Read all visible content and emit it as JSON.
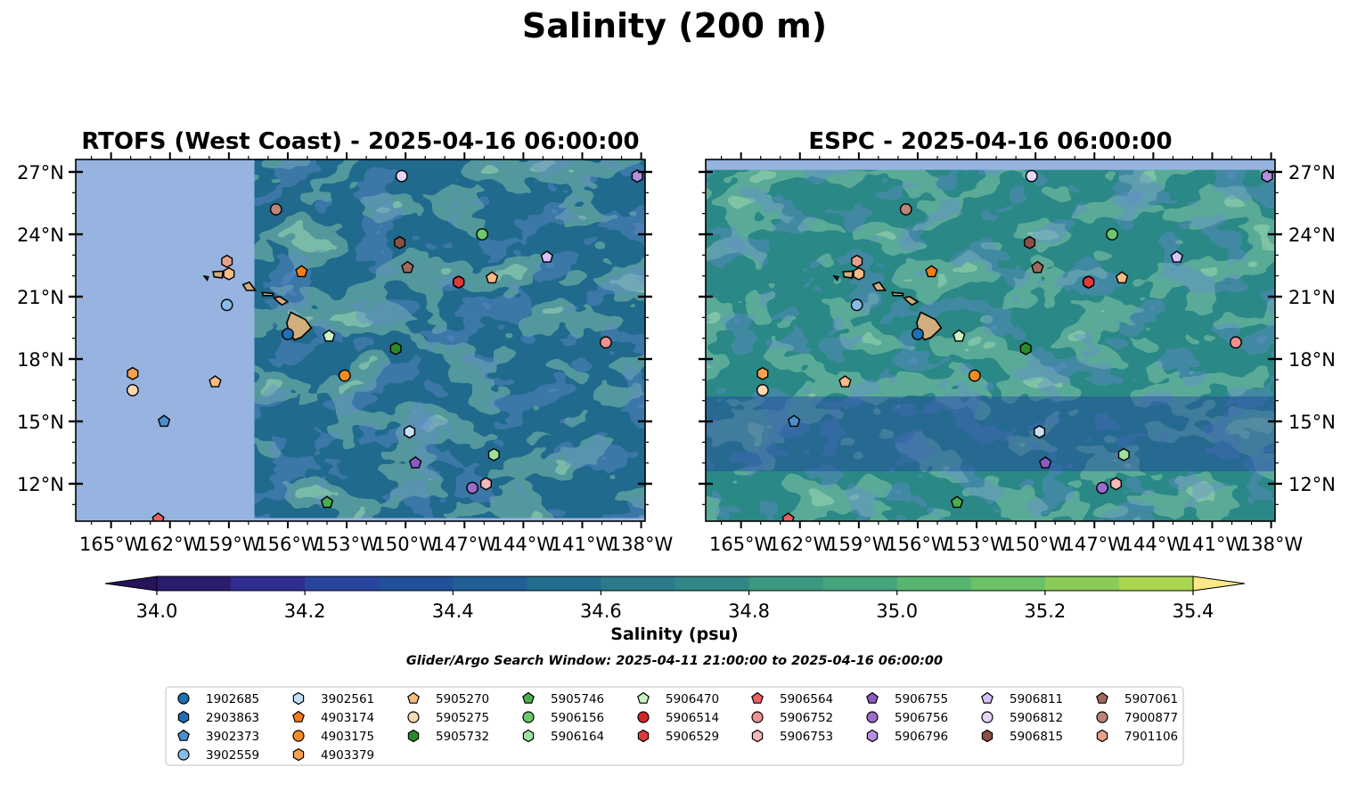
{
  "figure": {
    "suptitle": "Salinity (200 m)",
    "search_window_note": "Glider/Argo Search Window: 2025-04-11 21:00:00 to 2025-04-16 06:00:00"
  },
  "colors": {
    "land_masked": "#97b4e0",
    "island_fill": "#d2ae7c",
    "frame": "#000000"
  },
  "chart_data": [
    {
      "type": "heatmap",
      "title": "RTOFS (West Coast) - 2025-04-16 06:00:00",
      "map_extent": {
        "lon": [
          -166.8,
          -137.8
        ],
        "lat": [
          10.2,
          27.6
        ]
      },
      "x_ticks": [
        "165°W",
        "162°W",
        "159°W",
        "156°W",
        "153°W",
        "150°W",
        "147°W",
        "144°W",
        "141°W",
        "138°W"
      ],
      "y_ticks": [
        "27°N",
        "24°N",
        "21°N",
        "18°N",
        "15°N",
        "12°N"
      ],
      "y_tick_side": "left",
      "data_domain_lon_min": -157.7,
      "typical_salinity_psu": 34.6
    },
    {
      "type": "heatmap",
      "title": "ESPC - 2025-04-16 06:00:00",
      "map_extent": {
        "lon": [
          -166.8,
          -137.8
        ],
        "lat": [
          10.2,
          27.6
        ]
      },
      "x_ticks": [
        "165°W",
        "162°W",
        "159°W",
        "156°W",
        "153°W",
        "150°W",
        "147°W",
        "144°W",
        "141°W",
        "138°W"
      ],
      "y_ticks": [
        "27°N",
        "24°N",
        "21°N",
        "18°N",
        "15°N",
        "12°N"
      ],
      "y_tick_side": "right",
      "data_domain_lat_max": 27.1,
      "typical_salinity_psu": 34.8
    }
  ],
  "colorbar": {
    "label": "Salinity (psu)",
    "min": 34.0,
    "max": 35.4,
    "step": 0.1,
    "extend": "both",
    "tick_labels": [
      "34.0",
      "34.2",
      "34.4",
      "34.6",
      "34.8",
      "35.0",
      "35.2",
      "35.4"
    ],
    "colors": [
      "#2a1b6c",
      "#2f2c92",
      "#2a45a0",
      "#214f9a",
      "#1f5f94",
      "#226c8e",
      "#2b7a89",
      "#318785",
      "#3b9881",
      "#45a57c",
      "#57b572",
      "#6cc066",
      "#8acb58",
      "#abd650",
      "#d1e16c"
    ],
    "under_color": "#26135a",
    "over_color": "#fde889"
  },
  "floats": [
    {
      "id": "1902685",
      "marker": "o",
      "color": "#1f6fb5",
      "lon": -156.0,
      "lat": 19.2
    },
    {
      "id": "2903863",
      "marker": "h",
      "color": "#1f6fb5",
      "lon": -149.8,
      "lat": 14.5
    },
    {
      "id": "3902373",
      "marker": "p",
      "color": "#4c8fd0",
      "lon": -162.3,
      "lat": 15.0
    },
    {
      "id": "3902559",
      "marker": "o",
      "color": "#86bce8",
      "lon": -159.1,
      "lat": 20.6
    },
    {
      "id": "3902561",
      "marker": "h",
      "color": "#c4e0f6",
      "lon": -149.8,
      "lat": 14.5
    },
    {
      "id": "4903174",
      "marker": "p",
      "color": "#f47d1a",
      "lon": -155.3,
      "lat": 22.2
    },
    {
      "id": "4903175",
      "marker": "o",
      "color": "#f58c23",
      "lon": -153.1,
      "lat": 17.2
    },
    {
      "id": "4903379",
      "marker": "h",
      "color": "#f6a050",
      "lon": -163.9,
      "lat": 17.3
    },
    {
      "id": "5905270",
      "marker": "p",
      "color": "#f9bb84",
      "lon": -159.7,
      "lat": 16.9
    },
    {
      "id": "5905275",
      "marker": "o",
      "color": "#fcd8b1",
      "lon": -163.9,
      "lat": 16.5
    },
    {
      "id": "5905732",
      "marker": "h",
      "color": "#2a8a2a",
      "lon": -150.5,
      "lat": 18.5
    },
    {
      "id": "5905746",
      "marker": "p",
      "color": "#4cae4c",
      "lon": -154.0,
      "lat": 11.1
    },
    {
      "id": "5906156",
      "marker": "o",
      "color": "#6cc86c",
      "lon": -146.1,
      "lat": 24.0
    },
    {
      "id": "5906164",
      "marker": "h",
      "color": "#9ee09e",
      "lon": -145.5,
      "lat": 13.4
    },
    {
      "id": "5906470",
      "marker": "p",
      "color": "#c8f2c0",
      "lon": -153.9,
      "lat": 19.1
    },
    {
      "id": "5906514",
      "marker": "o",
      "color": "#d62728",
      "lon": -147.3,
      "lat": 21.7
    },
    {
      "id": "5906529",
      "marker": "h",
      "color": "#e0393b",
      "lon": -147.3,
      "lat": 21.7
    },
    {
      "id": "5906564",
      "marker": "p",
      "color": "#eb6060",
      "lon": -162.6,
      "lat": 10.3
    },
    {
      "id": "5906752",
      "marker": "o",
      "color": "#f09090",
      "lon": -139.8,
      "lat": 18.8
    },
    {
      "id": "5906753",
      "marker": "h",
      "color": "#f6b8b8",
      "lon": -145.9,
      "lat": 12.0
    },
    {
      "id": "5906755",
      "marker": "p",
      "color": "#8a5cbf",
      "lon": -149.5,
      "lat": 13.0
    },
    {
      "id": "5906756",
      "marker": "o",
      "color": "#9a6ccc",
      "lon": -146.6,
      "lat": 11.8
    },
    {
      "id": "5906796",
      "marker": "h",
      "color": "#b58ee0",
      "lon": -138.2,
      "lat": 26.8
    },
    {
      "id": "5906811",
      "marker": "p",
      "color": "#d8c2f8",
      "lon": -142.8,
      "lat": 22.9
    },
    {
      "id": "5906812",
      "marker": "o",
      "color": "#e6d6fb",
      "lon": -150.2,
      "lat": 26.8
    },
    {
      "id": "5906815",
      "marker": "h",
      "color": "#8a4f45",
      "lon": -150.3,
      "lat": 23.6
    },
    {
      "id": "5907061",
      "marker": "p",
      "color": "#a06a5e",
      "lon": -149.9,
      "lat": 22.4
    },
    {
      "id": "7900877",
      "marker": "o",
      "color": "#bd8577",
      "lon": -156.6,
      "lat": 25.2
    },
    {
      "id": "7901106",
      "marker": "h",
      "color": "#e6a08c",
      "lon": -159.1,
      "lat": 22.7
    }
  ],
  "extra_markers": [
    {
      "marker": "p",
      "color": "#f9bb84",
      "lon": -145.6,
      "lat": 21.9
    },
    {
      "marker": "h",
      "color": "#f9bb84",
      "lon": -159.0,
      "lat": 22.1
    }
  ]
}
